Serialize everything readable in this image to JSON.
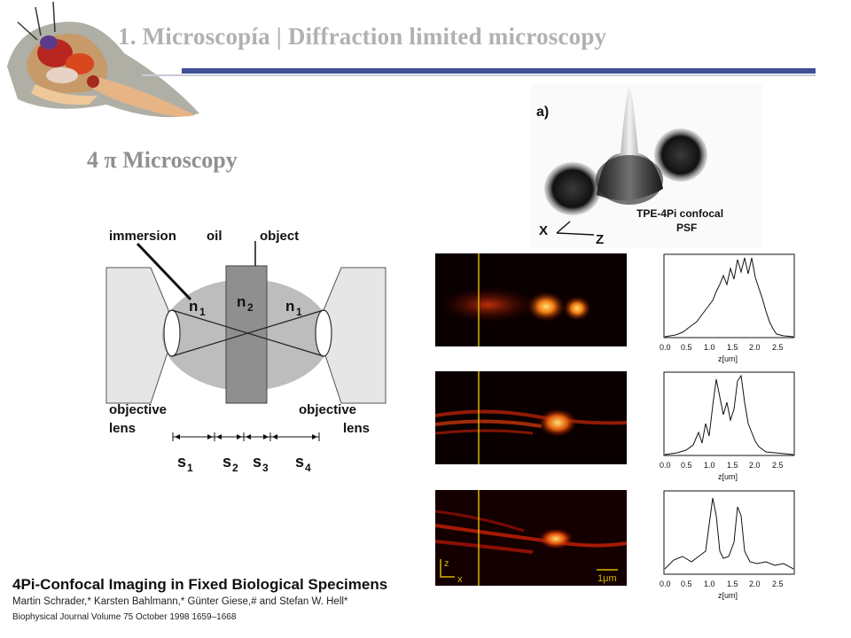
{
  "slide": {
    "title": "1.  Microscopía |  Diffraction limited microscopy",
    "subtitle": "4 π Microscopy",
    "logo": "colorful-anatomy-illustration"
  },
  "diagram": {
    "label_immersion": "immersion",
    "label_oil": "oil",
    "label_object": "object",
    "n1_left": "n",
    "n1_left_sub": "1",
    "n2": "n",
    "n2_sub": "2",
    "n1_right": "n",
    "n1_right_sub": "1",
    "obj_left_1": "objective",
    "obj_left_2": "lens",
    "obj_right_1": "objective",
    "obj_right_2": "lens",
    "s1": "s",
    "s1_sub": "1",
    "s2": "s",
    "s2_sub": "2",
    "s3": "s",
    "s3_sub": "3",
    "s4": "s",
    "s4_sub": "4"
  },
  "psf_panel": {
    "panel_letter": "a)",
    "caption_line1": "TPE-4Pi confocal",
    "caption_line2": "PSF",
    "axis_x": "X",
    "axis_z": "Z"
  },
  "images": {
    "axis_z": "z",
    "axis_x": "x",
    "scale_bar": "1μm"
  },
  "plots": {
    "xlabel": "z[um]",
    "ticks": [
      "0.0",
      "0.5",
      "1.0",
      "1.5",
      "2.0",
      "2.5"
    ]
  },
  "citation": {
    "title": "4Pi-Confocal Imaging in Fixed Biological Specimens",
    "authors": "Martin Schrader,* Karsten Bahlmann,* Günter Giese,# and Stefan W. Hell*",
    "journal": "Biophysical Journal   Volume 75   October 1998   1659–1668"
  },
  "colors": {
    "title": "#b1b1b1",
    "rule": "#3f4f97",
    "subtitle": "#909090"
  }
}
